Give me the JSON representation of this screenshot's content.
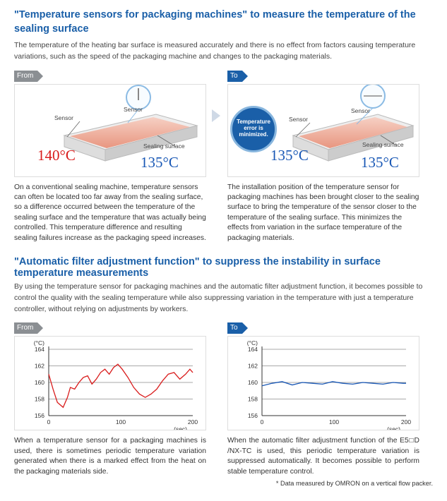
{
  "section1": {
    "title": "\"Temperature sensors for packaging machines\" to measure the temperature of the sealing surface",
    "intro": "The temperature of the heating bar surface is measured accurately and there is no effect from factors causing temperature variations, such as the speed of the packaging machine and changes to the packaging materials."
  },
  "badges": {
    "from": "From",
    "to": "To"
  },
  "fig1": {
    "sensor_label": "Sensor",
    "sealing_label": "Sealing surface",
    "sensor_temp": "140°C",
    "surface_temp": "135°C",
    "sensor_color": "#d91c1c",
    "surface_color": "#1857b5",
    "sensor_fontsize": 21,
    "surface_fontsize": 21,
    "desc": "On a conventional sealing machine, temperature sensors can often be located too far away from the sealing surface, so a difference occurred between the temperature of the sealing surface and the temperature that was actually being controlled.\nThis temperature difference and resulting sealing failures increase as the packaging speed increases."
  },
  "fig2": {
    "circle_text": "Temperature error is minimized.",
    "sensor_label": "Sensor",
    "sealing_label": "Sealing surface",
    "sensor_temp": "135°C",
    "surface_temp": "135°C",
    "sensor_fontsize": 21,
    "surface_fontsize": 21,
    "desc": "The installation position of the temperature sensor for packaging machines has been brought closer to the sealing surface to bring the temperature of the sensor closer to the temperature of the sealing surface. This minimizes the effects from variation in the surface temperature of the packaging materials."
  },
  "section2": {
    "title": "\"Automatic filter adjustment function\" to suppress the instability in surface temperature measurements",
    "intro": "By using the temperature sensor for packaging machines and the automatic filter adjustment function, it becomes possible to control the quality with the sealing temperature while also suppressing variation in the temperature with just a temperature controller, without relying on adjustments by workers."
  },
  "chart_shared": {
    "y_unit": "(°C)",
    "x_unit": "(sec)",
    "y_ticks": [
      "164",
      "162",
      "160",
      "158",
      "156"
    ],
    "x_ticks": [
      "0",
      "100",
      "200"
    ],
    "ylim": [
      156,
      164
    ],
    "xlim": [
      0,
      200
    ],
    "line_color": "#d91c1c",
    "line_color_stable": "#1857b5",
    "grid_color": "#555",
    "line_width": 1.3,
    "plot_bg": "#ffffff"
  },
  "chart1": {
    "series": [
      [
        0,
        161
      ],
      [
        6,
        159.2
      ],
      [
        12,
        157.6
      ],
      [
        20,
        157.0
      ],
      [
        26,
        158.2
      ],
      [
        30,
        159.4
      ],
      [
        36,
        159.2
      ],
      [
        42,
        160.0
      ],
      [
        48,
        160.6
      ],
      [
        54,
        160.8
      ],
      [
        60,
        159.8
      ],
      [
        66,
        160.4
      ],
      [
        72,
        161.2
      ],
      [
        78,
        161.6
      ],
      [
        84,
        161.0
      ],
      [
        90,
        161.8
      ],
      [
        96,
        162.2
      ],
      [
        102,
        161.6
      ],
      [
        110,
        160.6
      ],
      [
        118,
        159.4
      ],
      [
        126,
        158.6
      ],
      [
        134,
        158.2
      ],
      [
        142,
        158.6
      ],
      [
        150,
        159.2
      ],
      [
        158,
        160.2
      ],
      [
        166,
        161.0
      ],
      [
        174,
        161.2
      ],
      [
        182,
        160.4
      ],
      [
        190,
        161.0
      ],
      [
        196,
        161.6
      ],
      [
        200,
        161.2
      ]
    ],
    "desc": "When a temperature sensor for a packaging machines is used, there is sometimes periodic temperature variation generated when there is a marked effect from the heat on the packaging materials side."
  },
  "chart2": {
    "series": [
      [
        0,
        159.6
      ],
      [
        14,
        159.9
      ],
      [
        28,
        160.1
      ],
      [
        42,
        159.7
      ],
      [
        56,
        160.0
      ],
      [
        70,
        159.9
      ],
      [
        84,
        159.8
      ],
      [
        98,
        160.1
      ],
      [
        112,
        159.9
      ],
      [
        126,
        159.8
      ],
      [
        140,
        160.0
      ],
      [
        154,
        159.9
      ],
      [
        168,
        159.8
      ],
      [
        182,
        160.0
      ],
      [
        196,
        159.9
      ],
      [
        200,
        159.9
      ]
    ],
    "desc": "When the automatic filter adjustment function of the E5□D /NX-TC is used, this periodic temperature variation is suppressed automatically. It becomes possible to perform stable temperature control."
  },
  "footnote": "* Data measured by OMRON on a vertical flow packer."
}
